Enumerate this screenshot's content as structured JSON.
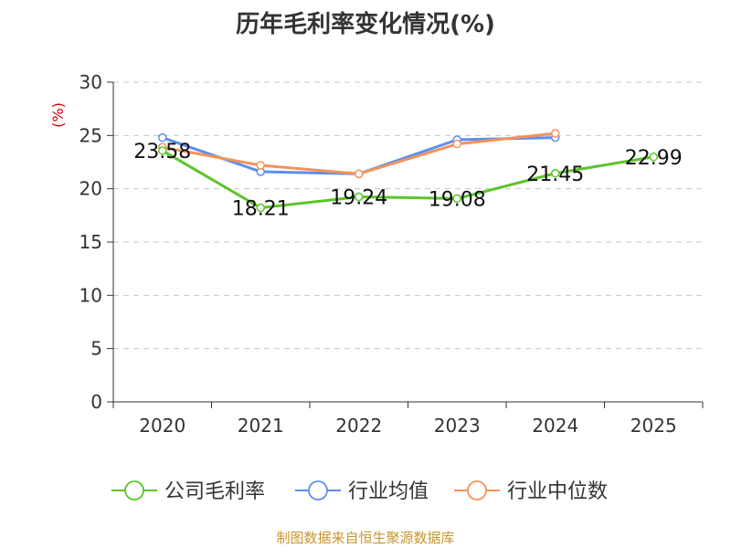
{
  "chart_data": {
    "type": "line",
    "title": "历年毛利率变化情况(%)",
    "ylabel": "(%)",
    "xlabel": "",
    "categories": [
      "2020",
      "2021",
      "2022",
      "2023",
      "2024",
      "2025"
    ],
    "ylim": [
      0,
      30
    ],
    "yticks": [
      0,
      5,
      10,
      15,
      20,
      25,
      30
    ],
    "grid": "horizontal dashed",
    "legend_position": "bottom",
    "series": [
      {
        "name": "公司毛利率",
        "color": "#5cc52a",
        "values": [
          23.58,
          18.21,
          19.24,
          19.08,
          21.45,
          22.99
        ],
        "labels": [
          "23.58",
          "18.21",
          "19.24",
          "19.08",
          "21.45",
          "22.99"
        ]
      },
      {
        "name": "行业均值",
        "color": "#5b8ff0",
        "values": [
          24.8,
          21.6,
          21.4,
          24.6,
          24.8,
          null
        ]
      },
      {
        "name": "行业中位数",
        "color": "#f4935a",
        "values": [
          23.9,
          22.2,
          21.4,
          24.2,
          25.2,
          null
        ]
      }
    ]
  },
  "footer": "制图数据来自恒生聚源数据库"
}
